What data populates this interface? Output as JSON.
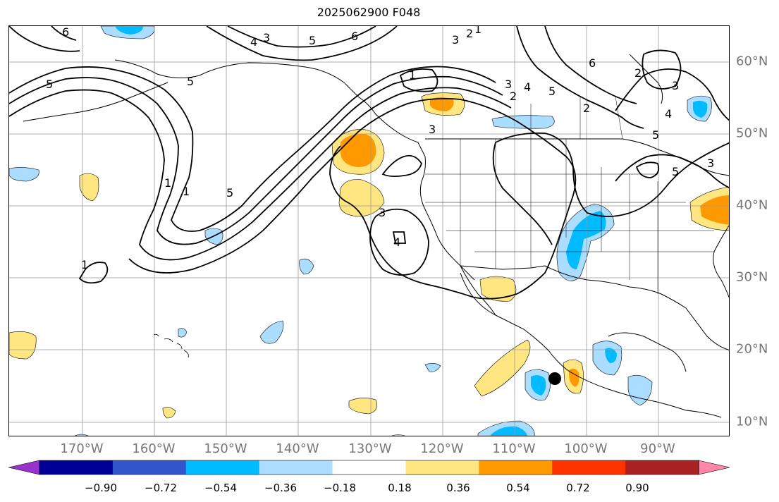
{
  "title": "2025062900 F048",
  "lon_labels": [
    "170°W",
    "160°W",
    "150°W",
    "140°W",
    "130°W",
    "120°W",
    "110°W",
    "100°W",
    "90°W"
  ],
  "lat_labels": [
    "60°N",
    "50°N",
    "40°N",
    "30°N",
    "20°N",
    "10°N"
  ],
  "colorbar": {
    "ticks": [
      "−0.90",
      "−0.72",
      "−0.54",
      "−0.36",
      "−0.18",
      "0.18",
      "0.36",
      "0.54",
      "0.72",
      "0.90"
    ],
    "colors": [
      "#9933cc",
      "#000099",
      "#3355cc",
      "#00bbff",
      "#aaddff",
      "#ffffff",
      "#ffe680",
      "#ff9900",
      "#ff3300",
      "#aa2222",
      "#ff88aa"
    ]
  },
  "contour_labels": [
    "6",
    "3",
    "4",
    "5",
    "6",
    "3",
    "2",
    "1",
    "5",
    "1",
    "3",
    "4",
    "2",
    "5",
    "6",
    "3",
    "2",
    "4",
    "5",
    "3",
    "1",
    "1",
    "5",
    "5",
    "3",
    "4",
    "1",
    "2",
    "5",
    "3"
  ],
  "colors": {
    "gridline": "#999999",
    "contour": "#000000",
    "coast": "#000000"
  }
}
